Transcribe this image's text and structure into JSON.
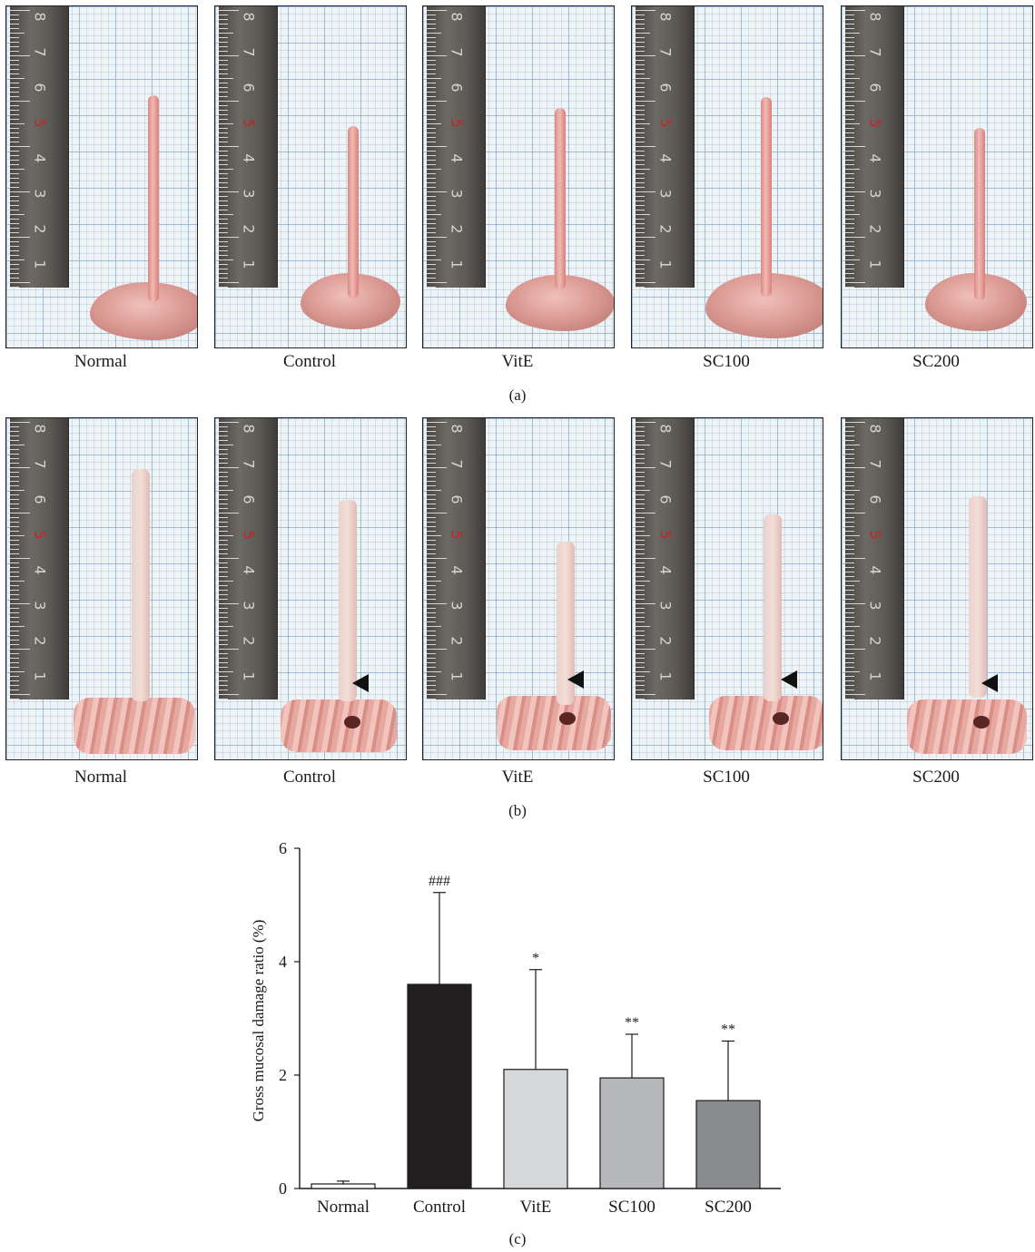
{
  "panel_a": {
    "letter": "(a)",
    "photos": [
      {
        "label": "Normal"
      },
      {
        "label": "Control"
      },
      {
        "label": "VitE"
      },
      {
        "label": "SC100"
      },
      {
        "label": "SC200"
      }
    ]
  },
  "panel_b": {
    "letter": "(b)",
    "photos": [
      {
        "label": "Normal"
      },
      {
        "label": "Control"
      },
      {
        "label": "VitE"
      },
      {
        "label": "SC100"
      },
      {
        "label": "SC200"
      }
    ]
  },
  "ruler_numbers": [
    "8",
    "7",
    "6",
    "5",
    "4",
    "3",
    "2",
    "1"
  ],
  "panel_c": {
    "letter": "(c)"
  },
  "chart_data": {
    "type": "bar",
    "categories": [
      "Normal",
      "Control",
      "VitE",
      "SC100",
      "SC200"
    ],
    "values": [
      0.08,
      3.6,
      2.1,
      1.95,
      1.55
    ],
    "errors": [
      0.05,
      1.62,
      1.76,
      0.77,
      1.05
    ],
    "annotations": [
      "",
      "###",
      "*",
      "**",
      "**"
    ],
    "bar_colors": [
      "#ffffff",
      "#231f20",
      "#d6d7d9",
      "#b7b8bb",
      "#8b8c8f"
    ],
    "ylabel": "Gross mucosal damage ratio (%)",
    "xlabel": "",
    "ylim": [
      0,
      6
    ],
    "yticks": [
      0,
      2,
      4,
      6
    ]
  }
}
